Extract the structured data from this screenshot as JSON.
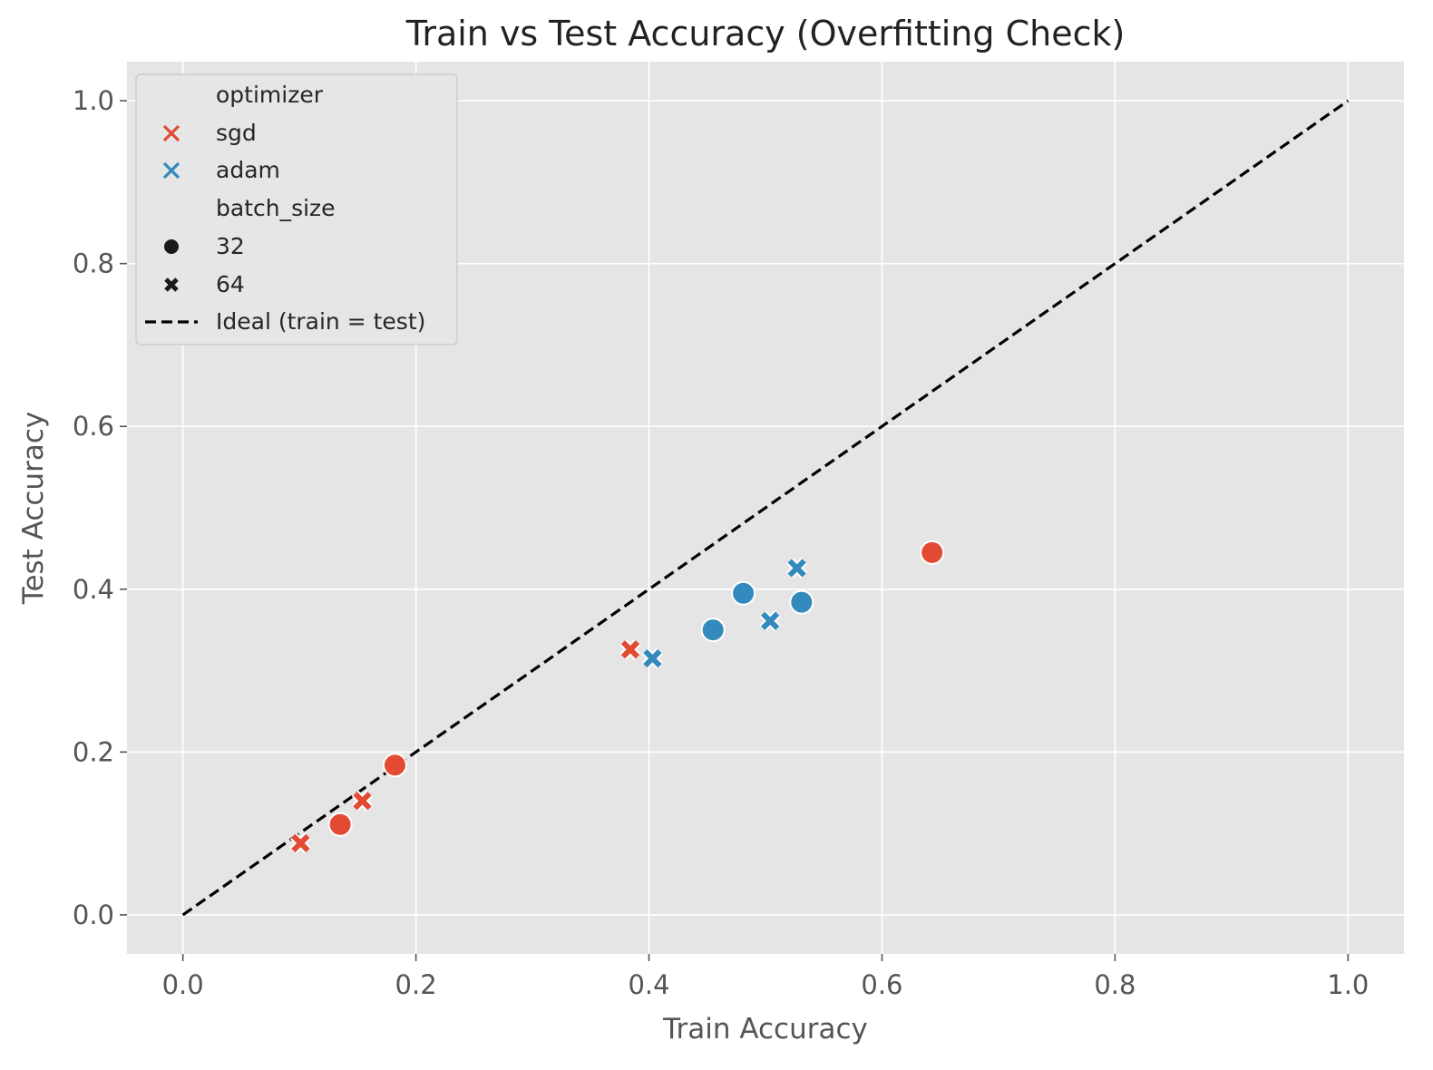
{
  "chart_data": {
    "type": "scatter",
    "title": "Train vs Test Accuracy (Overfitting Check)",
    "xlabel": "Train Accuracy",
    "ylabel": "Test Accuracy",
    "xlim": [
      -0.048,
      1.048
    ],
    "ylim": [
      -0.048,
      1.048
    ],
    "xticks": [
      "0.0",
      "0.2",
      "0.4",
      "0.6",
      "0.8",
      "1.0"
    ],
    "yticks": [
      "0.0",
      "0.2",
      "0.4",
      "0.6",
      "0.8",
      "1.0"
    ],
    "grid": true,
    "legend_placement": "upper-left",
    "colors": {
      "sgd": "#E24A33",
      "adam": "#348ABD",
      "background": "#E5E5E5",
      "grid": "#FFFFFF",
      "ideal": "#000000"
    },
    "legend": {
      "hue_title": "optimizer",
      "hue_items": [
        {
          "label": "sgd",
          "key": "sgd"
        },
        {
          "label": "adam",
          "key": "adam"
        }
      ],
      "style_title": "batch_size",
      "style_items": [
        {
          "label": "32",
          "marker": "circle"
        },
        {
          "label": "64",
          "marker": "x"
        }
      ],
      "line_label": "Ideal (train = test)"
    },
    "ideal_line": {
      "x": [
        0,
        1
      ],
      "y": [
        0,
        1
      ]
    },
    "points": [
      {
        "optimizer": "sgd",
        "batch_size": 64,
        "x": 0.101,
        "y": 0.088
      },
      {
        "optimizer": "sgd",
        "batch_size": 32,
        "x": 0.135,
        "y": 0.111
      },
      {
        "optimizer": "sgd",
        "batch_size": 64,
        "x": 0.154,
        "y": 0.14
      },
      {
        "optimizer": "sgd",
        "batch_size": 32,
        "x": 0.182,
        "y": 0.184
      },
      {
        "optimizer": "sgd",
        "batch_size": 64,
        "x": 0.384,
        "y": 0.326
      },
      {
        "optimizer": "sgd",
        "batch_size": 32,
        "x": 0.643,
        "y": 0.445
      },
      {
        "optimizer": "adam",
        "batch_size": 64,
        "x": 0.403,
        "y": 0.315
      },
      {
        "optimizer": "adam",
        "batch_size": 32,
        "x": 0.455,
        "y": 0.35
      },
      {
        "optimizer": "adam",
        "batch_size": 32,
        "x": 0.481,
        "y": 0.395
      },
      {
        "optimizer": "adam",
        "batch_size": 64,
        "x": 0.504,
        "y": 0.361
      },
      {
        "optimizer": "adam",
        "batch_size": 64,
        "x": 0.527,
        "y": 0.426
      },
      {
        "optimizer": "adam",
        "batch_size": 32,
        "x": 0.531,
        "y": 0.384
      }
    ]
  }
}
